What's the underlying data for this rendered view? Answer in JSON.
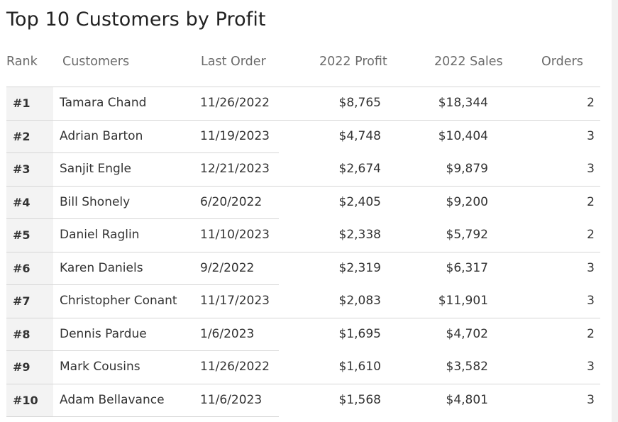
{
  "title": "Top 10 Customers by Profit",
  "columns": {
    "rank": "Rank",
    "customers": "Customers",
    "last_order": "Last Order",
    "profit": "2022 Profit",
    "sales": "2022 Sales",
    "orders": "Orders"
  },
  "rows": [
    {
      "rank": "#1",
      "customer": "Tamara Chand",
      "last_order": "11/26/2022",
      "profit": "$8,765",
      "sales": "$18,344",
      "orders": "2"
    },
    {
      "rank": "#2",
      "customer": "Adrian Barton",
      "last_order": "11/19/2023",
      "profit": "$4,748",
      "sales": "$10,404",
      "orders": "3"
    },
    {
      "rank": "#3",
      "customer": "Sanjit Engle",
      "last_order": "12/21/2023",
      "profit": "$2,674",
      "sales": "$9,879",
      "orders": "3"
    },
    {
      "rank": "#4",
      "customer": "Bill Shonely",
      "last_order": "6/20/2022",
      "profit": "$2,405",
      "sales": "$9,200",
      "orders": "2"
    },
    {
      "rank": "#5",
      "customer": "Daniel Raglin",
      "last_order": "11/10/2023",
      "profit": "$2,338",
      "sales": "$5,792",
      "orders": "2"
    },
    {
      "rank": "#6",
      "customer": "Karen Daniels",
      "last_order": "9/2/2022",
      "profit": "$2,319",
      "sales": "$6,317",
      "orders": "3"
    },
    {
      "rank": "#7",
      "customer": "Christopher Conant",
      "last_order": "11/17/2023",
      "profit": "$2,083",
      "sales": "$11,901",
      "orders": "3"
    },
    {
      "rank": "#8",
      "customer": "Dennis Pardue",
      "last_order": "1/6/2023",
      "profit": "$1,695",
      "sales": "$4,702",
      "orders": "2"
    },
    {
      "rank": "#9",
      "customer": "Mark Cousins",
      "last_order": "11/26/2022",
      "profit": "$1,610",
      "sales": "$3,582",
      "orders": "3"
    },
    {
      "rank": "#10",
      "customer": "Adam Bellavance",
      "last_order": "11/6/2023",
      "profit": "$1,568",
      "sales": "$4,801",
      "orders": "3"
    }
  ]
}
